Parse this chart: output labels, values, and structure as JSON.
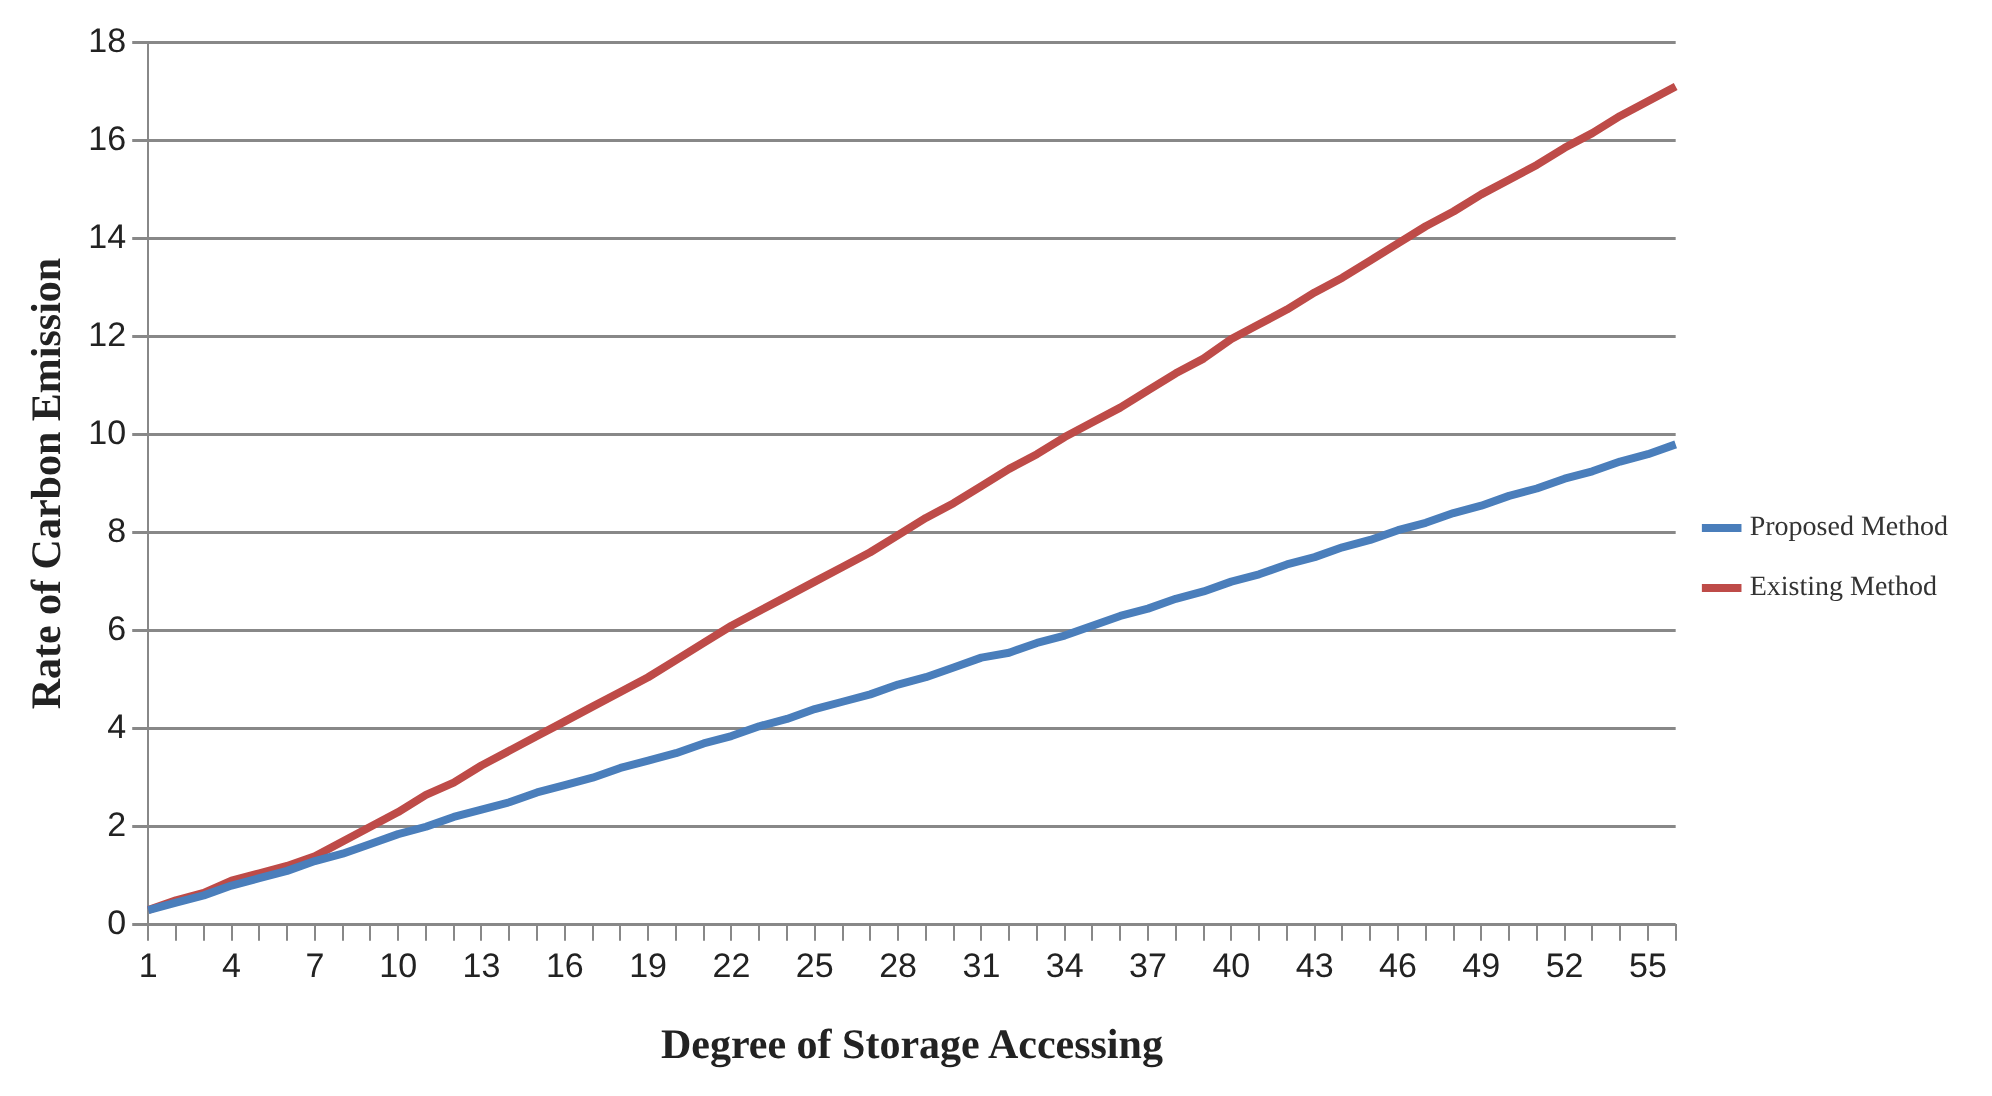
{
  "chart_data": {
    "type": "line",
    "xlabel": "Degree of Storage Accessing",
    "ylabel": "Rate of Carbon Emission",
    "categories": [
      "1",
      null,
      null,
      "4",
      null,
      null,
      "7",
      null,
      null,
      "10",
      null,
      null,
      "13",
      null,
      null,
      "16",
      null,
      null,
      "19",
      null,
      null,
      "22",
      null,
      null,
      "25",
      null,
      null,
      "28",
      null,
      null,
      "31",
      null,
      null,
      "34",
      null,
      null,
      "37",
      null,
      null,
      "40",
      null,
      null,
      "43",
      null,
      null,
      "46",
      null,
      null,
      "49",
      null,
      null,
      "52",
      null,
      null,
      "55",
      null
    ],
    "series": [
      {
        "name": "Proposed Method",
        "color": "#4a7ebb",
        "values": [
          0.3,
          0.45,
          0.6,
          0.8,
          0.95,
          1.1,
          1.3,
          1.45,
          1.65,
          1.85,
          2.0,
          2.2,
          2.35,
          2.5,
          2.7,
          2.85,
          3.0,
          3.2,
          3.35,
          3.5,
          3.7,
          3.85,
          4.05,
          4.2,
          4.4,
          4.55,
          4.7,
          4.9,
          5.05,
          5.25,
          5.45,
          5.55,
          5.75,
          5.9,
          6.1,
          6.3,
          6.45,
          6.65,
          6.8,
          7.0,
          7.15,
          7.35,
          7.5,
          7.7,
          7.85,
          8.05,
          8.2,
          8.4,
          8.55,
          8.75,
          8.9,
          9.1,
          9.25,
          9.45,
          9.6,
          9.8
        ]
      },
      {
        "name": "Existing Method",
        "color": "#be4b48",
        "values": [
          0.3,
          0.5,
          0.65,
          0.9,
          1.05,
          1.2,
          1.4,
          1.7,
          2.0,
          2.3,
          2.65,
          2.9,
          3.25,
          3.55,
          3.85,
          4.15,
          4.45,
          4.75,
          5.05,
          5.4,
          5.75,
          6.1,
          6.4,
          6.7,
          7.0,
          7.3,
          7.6,
          7.95,
          8.3,
          8.6,
          8.95,
          9.3,
          9.6,
          9.95,
          10.25,
          10.55,
          10.9,
          11.25,
          11.55,
          11.95,
          12.25,
          12.55,
          12.9,
          13.2,
          13.55,
          13.9,
          14.25,
          14.55,
          14.9,
          15.2,
          15.5,
          15.85,
          16.15,
          16.5,
          16.8,
          17.1
        ]
      }
    ],
    "ylim": [
      0,
      18
    ],
    "yticks": [
      0,
      2,
      4,
      6,
      8,
      10,
      12,
      14,
      16,
      18
    ],
    "grid": "y",
    "legend": "right",
    "marker": "none",
    "line_style": "solid"
  }
}
